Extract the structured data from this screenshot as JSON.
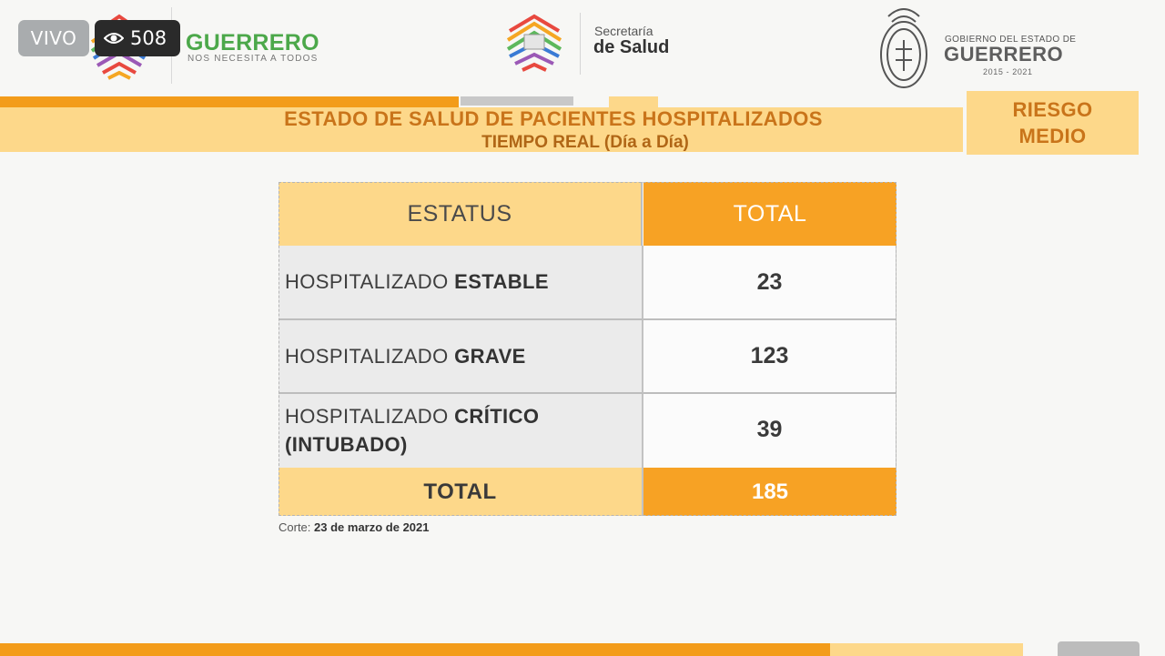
{
  "overlay": {
    "live_label": "VIVO",
    "viewer_count": "508"
  },
  "header": {
    "brand_title": "GUERRERO",
    "brand_subtitle": "NOS NECESITA A TODOS",
    "secretaria_line1": "Secretaría",
    "secretaria_line2": "de Salud",
    "gobierno_line1": "GOBIERNO DEL ESTADO DE",
    "gobierno_line2": "GUERRERO",
    "gobierno_years": "2015 - 2021"
  },
  "banner": {
    "title": "ESTADO DE SALUD DE PACIENTES HOSPITALIZADOS",
    "subtitle": "TIEMPO REAL (Día a Día)",
    "risk_line1": "RIESGO",
    "risk_line2": "MEDIO"
  },
  "table": {
    "header_status": "ESTATUS",
    "header_total": "TOTAL",
    "rows": [
      {
        "prefix": "HOSPITALIZADO ",
        "bold": "ESTABLE",
        "bold2": "",
        "value": "23"
      },
      {
        "prefix": "HOSPITALIZADO ",
        "bold": "GRAVE",
        "bold2": "",
        "value": "123"
      },
      {
        "prefix": "HOSPITALIZADO ",
        "bold": "CRÍTICO",
        "bold2": "(INTUBADO)",
        "value": "39"
      }
    ],
    "total_label": "TOTAL",
    "total_value": "185"
  },
  "footer": {
    "corte_label": "Corte:",
    "corte_date": "23 de marzo de 2021"
  },
  "colors": {
    "orange": "#f7a224",
    "light_yellow": "#fdd88a",
    "brand_green": "#4ca84a",
    "banner_text": "#c9741a"
  }
}
